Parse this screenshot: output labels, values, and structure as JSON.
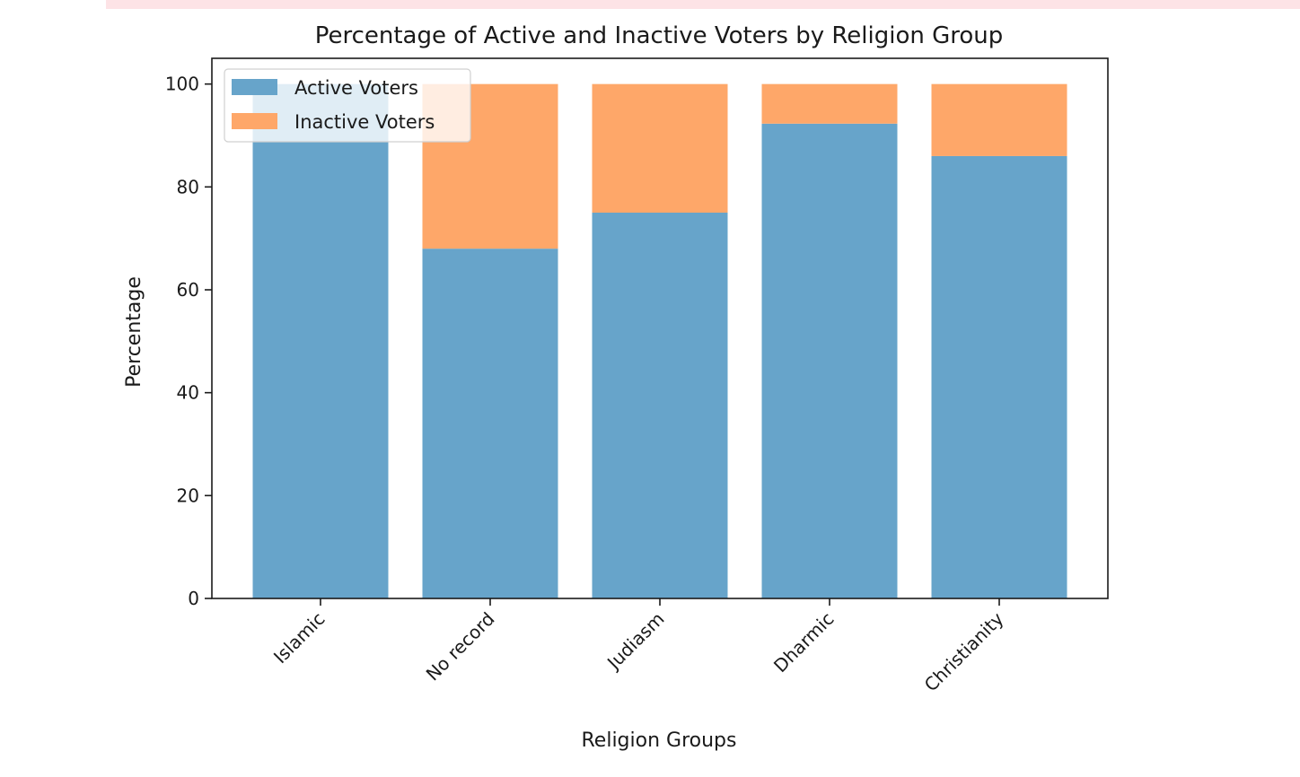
{
  "chart_data": {
    "type": "bar",
    "stacked": true,
    "title": "Percentage of Active and Inactive Voters by Religion Group",
    "xlabel": "Religion Groups",
    "ylabel": "Percentage",
    "ylim": [
      0,
      105
    ],
    "yticks": [
      0,
      20,
      40,
      60,
      80,
      100
    ],
    "categories": [
      "Islamic",
      "No record",
      "Judiasm",
      "Dharmic",
      "Christianity"
    ],
    "series": [
      {
        "name": "Active Voters",
        "values": [
          100,
          68,
          75,
          92.3,
          86
        ],
        "color": "#67a4ca"
      },
      {
        "name": "Inactive Voters",
        "values": [
          0,
          32,
          25,
          7.7,
          14
        ],
        "color": "#fea769"
      }
    ],
    "legend": "top-left",
    "grid": false
  }
}
